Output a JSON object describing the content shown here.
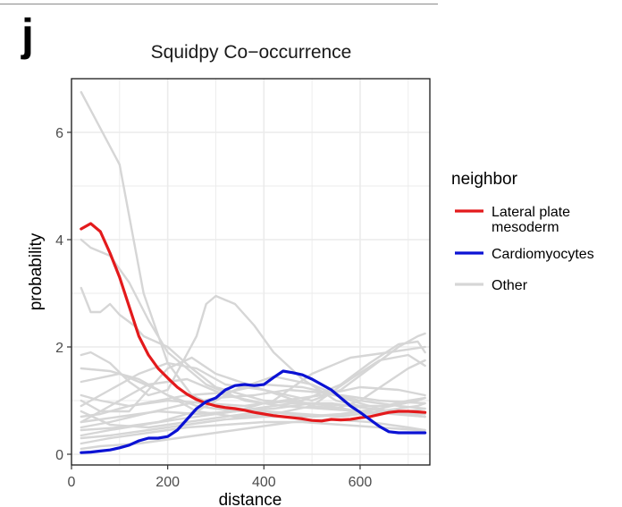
{
  "panel_label": "j",
  "chart_data": {
    "type": "line",
    "title": "Squidpy Co−occurrence",
    "xlabel": "distance",
    "ylabel": "probability",
    "xlim": [
      0,
      745
    ],
    "ylim": [
      -0.2,
      7.0
    ],
    "x_ticks": [
      0,
      200,
      400,
      600
    ],
    "x_tick_labels": [
      "0",
      "200",
      "400",
      "600"
    ],
    "y_ticks": [
      0,
      2,
      4,
      6
    ],
    "y_tick_labels": [
      "0",
      "2",
      "4",
      "6"
    ],
    "grid": true,
    "legend_position": "right",
    "legend": {
      "title": "neighbor",
      "entries": [
        {
          "label_lines": [
            "Lateral plate",
            "mesoderm"
          ],
          "color": "#e31a1c"
        },
        {
          "label_lines": [
            "Cardiomyocytes"
          ],
          "color": "#0b12d4"
        },
        {
          "label_lines": [
            "Other"
          ],
          "color": "#d6d6d6"
        }
      ]
    },
    "series": [
      {
        "name": "Lateral plate mesoderm",
        "color": "#e31a1c",
        "x": [
          20,
          40,
          60,
          80,
          100,
          120,
          140,
          160,
          180,
          200,
          220,
          240,
          260,
          280,
          300,
          320,
          340,
          360,
          380,
          400,
          420,
          440,
          460,
          480,
          500,
          520,
          540,
          560,
          580,
          600,
          620,
          640,
          660,
          680,
          700,
          720,
          735
        ],
        "y": [
          4.2,
          4.3,
          4.15,
          3.75,
          3.3,
          2.75,
          2.2,
          1.85,
          1.6,
          1.42,
          1.25,
          1.12,
          1.02,
          0.95,
          0.9,
          0.87,
          0.85,
          0.82,
          0.78,
          0.75,
          0.72,
          0.7,
          0.68,
          0.66,
          0.63,
          0.62,
          0.65,
          0.64,
          0.65,
          0.68,
          0.7,
          0.74,
          0.78,
          0.8,
          0.8,
          0.79,
          0.78
        ]
      },
      {
        "name": "Cardiomyocytes",
        "color": "#0b12d4",
        "x": [
          20,
          40,
          60,
          80,
          100,
          120,
          140,
          160,
          180,
          200,
          220,
          240,
          260,
          280,
          300,
          320,
          340,
          360,
          380,
          400,
          420,
          440,
          460,
          480,
          500,
          520,
          540,
          560,
          580,
          600,
          620,
          640,
          660,
          680,
          700,
          720,
          735
        ],
        "y": [
          0.03,
          0.04,
          0.06,
          0.08,
          0.12,
          0.17,
          0.25,
          0.3,
          0.3,
          0.33,
          0.45,
          0.65,
          0.85,
          0.98,
          1.05,
          1.2,
          1.28,
          1.3,
          1.28,
          1.3,
          1.43,
          1.55,
          1.52,
          1.48,
          1.4,
          1.3,
          1.2,
          1.05,
          0.9,
          0.78,
          0.65,
          0.52,
          0.42,
          0.4,
          0.4,
          0.4,
          0.4
        ]
      },
      {
        "color": "#d6d6d6",
        "x": [
          20,
          100,
          150,
          200,
          250,
          300,
          400,
          500,
          600,
          700,
          735
        ],
        "y": [
          6.75,
          5.4,
          3.0,
          1.7,
          1.1,
          0.9,
          0.8,
          0.7,
          0.75,
          0.8,
          0.85
        ]
      },
      {
        "color": "#d6d6d6",
        "x": [
          20,
          40,
          60,
          80,
          100,
          130,
          150,
          200,
          250,
          300,
          400,
          500,
          600,
          735
        ],
        "y": [
          3.1,
          2.65,
          2.65,
          2.8,
          2.6,
          2.4,
          2.2,
          2.0,
          1.6,
          1.25,
          1.0,
          0.95,
          0.8,
          0.7
        ]
      },
      {
        "color": "#d6d6d6",
        "x": [
          20,
          40,
          80,
          120,
          160,
          200,
          260,
          280,
          300,
          340,
          380,
          420,
          480,
          550,
          600,
          650,
          700,
          735
        ],
        "y": [
          1.85,
          1.9,
          1.7,
          1.35,
          1.1,
          1.2,
          2.2,
          2.8,
          2.95,
          2.8,
          2.4,
          1.9,
          1.4,
          1.0,
          0.9,
          0.9,
          1.0,
          1.05
        ]
      },
      {
        "color": "#d6d6d6",
        "x": [
          20,
          60,
          120,
          160,
          200,
          250,
          300,
          400,
          500,
          550,
          600,
          650,
          700,
          735
        ],
        "y": [
          1.0,
          0.8,
          0.8,
          1.2,
          1.6,
          1.8,
          1.5,
          1.2,
          0.9,
          0.85,
          1.0,
          1.3,
          1.6,
          1.75
        ]
      },
      {
        "color": "#d6d6d6",
        "x": [
          20,
          80,
          140,
          200,
          260,
          320,
          400,
          450,
          500,
          560,
          620,
          680,
          720,
          735
        ],
        "y": [
          0.9,
          1.2,
          1.5,
          1.7,
          1.6,
          1.3,
          1.2,
          1.1,
          1.0,
          1.2,
          1.6,
          2.0,
          2.2,
          2.25
        ]
      },
      {
        "color": "#d6d6d6",
        "x": [
          20,
          80,
          160,
          240,
          320,
          400,
          480,
          560,
          620,
          680,
          720,
          735
        ],
        "y": [
          0.6,
          0.9,
          1.3,
          1.4,
          1.1,
          0.95,
          1.0,
          1.3,
          1.7,
          2.05,
          2.1,
          1.9
        ]
      },
      {
        "color": "#d6d6d6",
        "x": [
          20,
          100,
          180,
          260,
          340,
          420,
          500,
          580,
          640,
          700,
          735
        ],
        "y": [
          1.35,
          1.5,
          1.2,
          0.8,
          0.7,
          0.75,
          0.9,
          1.4,
          1.75,
          1.85,
          1.65
        ]
      },
      {
        "color": "#d6d6d6",
        "x": [
          20,
          80,
          150,
          220,
          300,
          380,
          450,
          520,
          600,
          680,
          735
        ],
        "y": [
          0.5,
          0.6,
          0.75,
          0.9,
          1.05,
          1.1,
          1.2,
          1.15,
          1.0,
          0.9,
          0.85
        ]
      },
      {
        "color": "#d6d6d6",
        "x": [
          20,
          80,
          150,
          220,
          300,
          380,
          460,
          540,
          620,
          700,
          735
        ],
        "y": [
          0.35,
          0.45,
          0.55,
          0.65,
          0.75,
          0.85,
          0.95,
          0.95,
          0.85,
          0.75,
          0.7
        ]
      },
      {
        "color": "#d6d6d6",
        "x": [
          20,
          80,
          160,
          240,
          320,
          400,
          480,
          560,
          640,
          720,
          735
        ],
        "y": [
          0.2,
          0.3,
          0.4,
          0.5,
          0.55,
          0.6,
          0.6,
          0.55,
          0.5,
          0.45,
          0.45
        ]
      },
      {
        "color": "#d6d6d6",
        "x": [
          20,
          60,
          120,
          180,
          240,
          320,
          400,
          480,
          560,
          640,
          735
        ],
        "y": [
          1.1,
          1.0,
          0.9,
          1.0,
          1.1,
          1.15,
          1.3,
          1.25,
          1.1,
          1.0,
          0.95
        ]
      },
      {
        "color": "#d6d6d6",
        "x": [
          20,
          60,
          120,
          200,
          280,
          360,
          440,
          520,
          600,
          680,
          735
        ],
        "y": [
          0.7,
          0.75,
          0.9,
          1.0,
          0.95,
          0.9,
          1.0,
          1.1,
          1.25,
          1.2,
          1.1
        ]
      },
      {
        "color": "#d6d6d6",
        "x": [
          20,
          80,
          160,
          240,
          320,
          400,
          480,
          560,
          640,
          720,
          735
        ],
        "y": [
          0.8,
          0.55,
          0.5,
          0.6,
          0.7,
          0.8,
          0.75,
          0.7,
          0.8,
          0.9,
          0.95
        ]
      },
      {
        "color": "#d6d6d6",
        "x": [
          20,
          80,
          160,
          240,
          320,
          400,
          480,
          560,
          640,
          720,
          735
        ],
        "y": [
          0.3,
          0.35,
          0.45,
          0.55,
          0.65,
          0.7,
          0.7,
          0.75,
          0.85,
          1.0,
          1.05
        ]
      },
      {
        "color": "#d6d6d6",
        "x": [
          20,
          60,
          140,
          220,
          300,
          380,
          460,
          540,
          620,
          700,
          735
        ],
        "y": [
          0.1,
          0.15,
          0.2,
          0.3,
          0.4,
          0.5,
          0.6,
          0.65,
          0.6,
          0.5,
          0.45
        ]
      },
      {
        "color": "#d6d6d6",
        "x": [
          20,
          80,
          140,
          200,
          260,
          340,
          420,
          500,
          580,
          660,
          735
        ],
        "y": [
          1.6,
          1.55,
          1.4,
          1.1,
          0.9,
          0.8,
          0.85,
          0.95,
          0.9,
          0.8,
          0.75
        ]
      },
      {
        "color": "#d6d6d6",
        "x": [
          20,
          40,
          80,
          120,
          160,
          200,
          280,
          360,
          440,
          520,
          600,
          680,
          735
        ],
        "y": [
          4.0,
          3.85,
          3.7,
          3.2,
          2.5,
          1.9,
          1.3,
          1.0,
          0.9,
          0.85,
          0.8,
          0.75,
          0.7
        ]
      },
      {
        "color": "#d6d6d6",
        "x": [
          20,
          100,
          180,
          260,
          340,
          420,
          500,
          580,
          660,
          735
        ],
        "y": [
          0.45,
          0.5,
          0.6,
          0.8,
          1.2,
          1.45,
          1.3,
          1.0,
          0.8,
          0.7
        ]
      },
      {
        "color": "#d6d6d6",
        "x": [
          20,
          100,
          180,
          260,
          340,
          420,
          500,
          580,
          660,
          735
        ],
        "y": [
          0.6,
          0.7,
          0.8,
          0.75,
          0.8,
          1.0,
          1.5,
          1.8,
          1.9,
          2.0
        ]
      }
    ]
  }
}
